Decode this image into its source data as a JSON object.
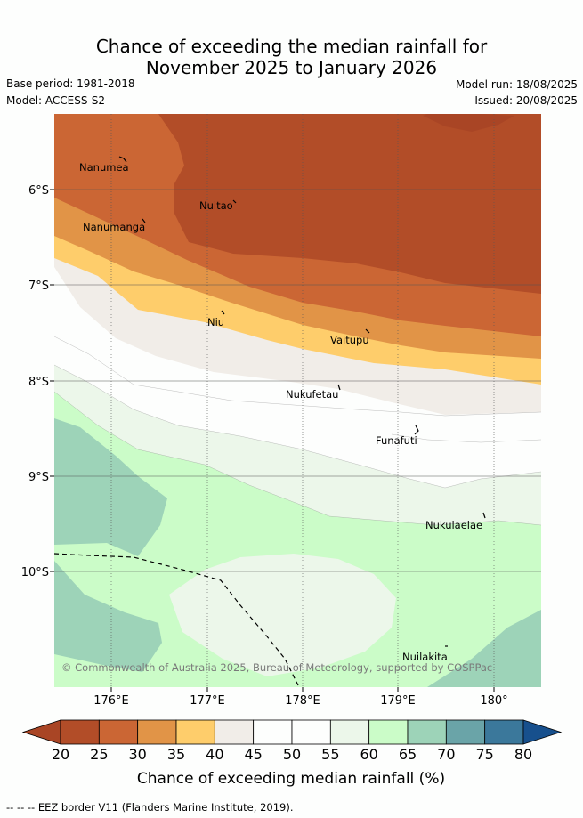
{
  "header": {
    "title_line1": "Chance of exceeding the median rainfall for",
    "title_line2": "November 2025 to January 2026",
    "base_period": "Base period: 1981-2018",
    "model": "Model: ACCESS-S2",
    "model_run": "Model run: 18/08/2025",
    "issued": "Issued: 20/08/2025"
  },
  "map": {
    "lat_labels": [
      "6°S",
      "7°S",
      "8°S",
      "9°S",
      "10°S"
    ],
    "lon_labels": [
      "176°E",
      "177°E",
      "178°E",
      "179°E",
      "180°"
    ],
    "places": [
      {
        "name": "Nanumea"
      },
      {
        "name": "Nuitao"
      },
      {
        "name": "Nanumanga"
      },
      {
        "name": "Niu"
      },
      {
        "name": "Vaitupu"
      },
      {
        "name": "Nukufetau"
      },
      {
        "name": "Funafuti"
      },
      {
        "name": "Nukulaelae"
      },
      {
        "name": "Nuilakita"
      }
    ],
    "copyright": "© Commonwealth of Australia 2025, Bureau of Meteorology, supported by COSPPac"
  },
  "colorbar": {
    "labels": [
      "20",
      "25",
      "30",
      "35",
      "40",
      "45",
      "50",
      "55",
      "60",
      "65",
      "70",
      "75",
      "80"
    ],
    "colors": [
      "#a94525",
      "#b24d28",
      "#cb6634",
      "#e19447",
      "#fecd6b",
      "#f1ede8",
      "#fdfefd",
      "#fdfefd",
      "#ecf7ea",
      "#cbfcc8",
      "#9dd3b8",
      "#6aa4a8",
      "#3b789b",
      "#17508d"
    ],
    "title": "Chance of exceeding median rainfall (%)"
  },
  "footnote": "-- -- -- EEZ border V11 (Flanders Marine Institute, 2019)."
}
